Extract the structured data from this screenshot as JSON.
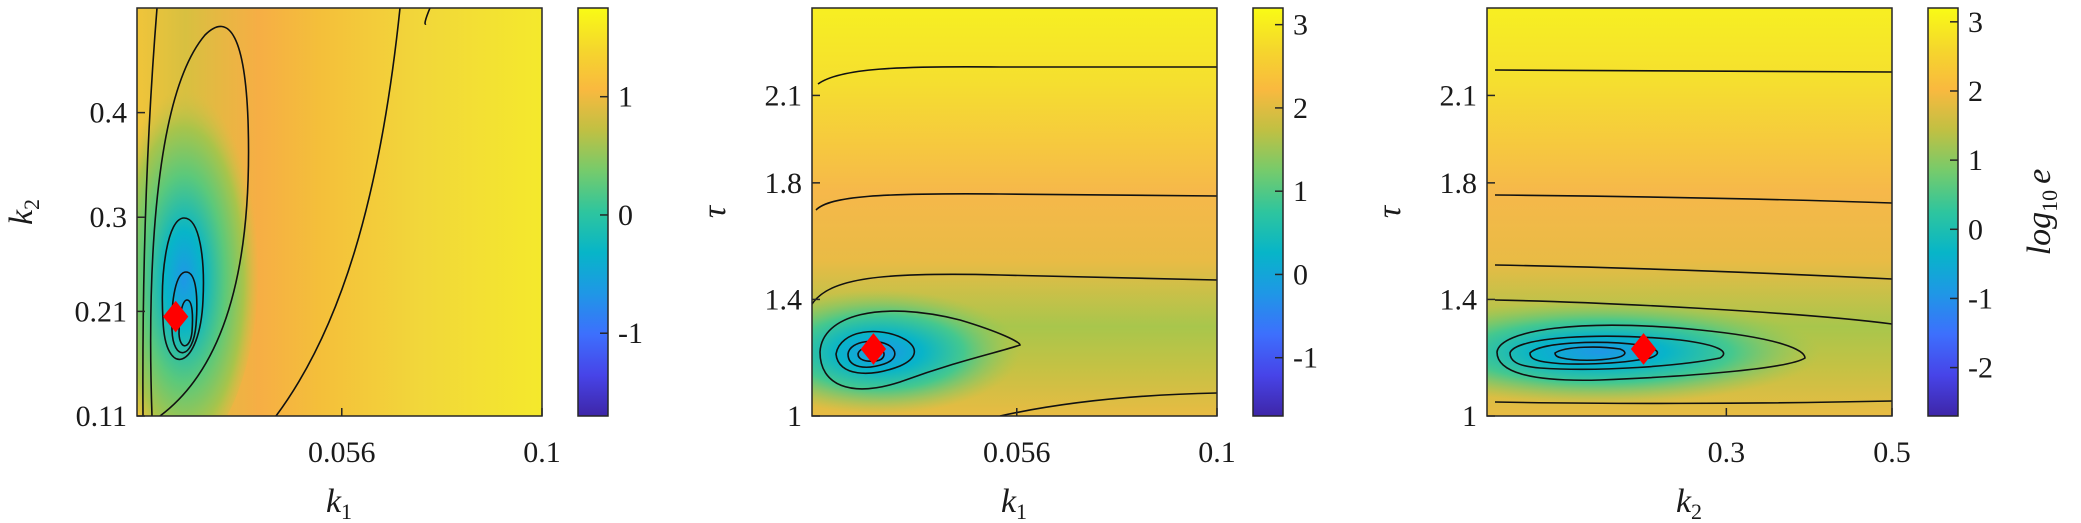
{
  "chart_data": [
    {
      "type": "heatmap",
      "panel": "left",
      "xlabel": "k",
      "xlabel_sub": "1",
      "ylabel": "k",
      "ylabel_sub": "2",
      "xlim": [
        0.011,
        0.1
      ],
      "ylim": [
        0.11,
        0.5
      ],
      "xticks": [
        "0.056",
        "0.1"
      ],
      "xtick_values": [
        0.056,
        0.1
      ],
      "yticks": [
        "0.11",
        "0.21",
        "0.3",
        "0.4"
      ],
      "ytick_values": [
        0.11,
        0.21,
        0.3,
        0.4
      ],
      "colorbar": {
        "min": -1.7,
        "max": 1.75,
        "ticks": [
          "-1",
          "0",
          "1"
        ],
        "tick_values": [
          -1,
          0,
          1
        ],
        "label": ""
      },
      "optimum_marker": {
        "x": 0.0195,
        "y": 0.205,
        "color": "#ff0000"
      }
    },
    {
      "type": "heatmap",
      "panel": "middle",
      "xlabel": "k",
      "xlabel_sub": "1",
      "ylabel": "τ",
      "ylabel_sub": "",
      "xlim": [
        0.011,
        0.1
      ],
      "ylim": [
        1.0,
        2.4
      ],
      "xticks": [
        "0.056",
        "0.1"
      ],
      "xtick_values": [
        0.056,
        0.1
      ],
      "yticks": [
        "1",
        "1.4",
        "1.8",
        "2.1"
      ],
      "ytick_values": [
        1.0,
        1.4,
        1.8,
        2.1
      ],
      "colorbar": {
        "min": -1.7,
        "max": 3.2,
        "ticks": [
          "-1",
          "0",
          "1",
          "2",
          "3"
        ],
        "tick_values": [
          -1,
          0,
          1,
          2,
          3
        ],
        "label": ""
      },
      "optimum_marker": {
        "x": 0.0245,
        "y": 1.23,
        "color": "#ff0000"
      }
    },
    {
      "type": "heatmap",
      "panel": "right",
      "xlabel": "k",
      "xlabel_sub": "2",
      "ylabel": "τ",
      "ylabel_sub": "",
      "xlim": [
        0.011,
        0.5
      ],
      "ylim": [
        1.0,
        2.4
      ],
      "xticks": [
        "0.3",
        "0.5"
      ],
      "xtick_values": [
        0.3,
        0.5
      ],
      "yticks": [
        "1",
        "1.4",
        "1.8",
        "2.1"
      ],
      "ytick_values": [
        1.0,
        1.4,
        1.8,
        2.1
      ],
      "colorbar": {
        "min": -2.7,
        "max": 3.2,
        "ticks": [
          "-2",
          "-1",
          "0",
          "1",
          "2",
          "3"
        ],
        "tick_values": [
          -2,
          -1,
          0,
          1,
          2,
          3
        ],
        "label": "log",
        "label_sub": "10",
        "label_var": "e"
      },
      "optimum_marker": {
        "x": 0.2,
        "y": 1.23,
        "color": "#ff0000"
      }
    }
  ],
  "colors": {
    "marker": "#ff0000",
    "contour": "#111111",
    "frame": "#262626"
  }
}
